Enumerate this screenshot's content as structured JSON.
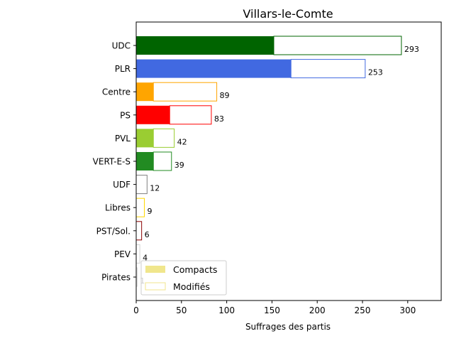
{
  "chart_data": {
    "type": "bar",
    "orientation": "horizontal",
    "title": "Villars-le-Comte",
    "xlabel": "Suffrages des partis",
    "ylabel": "",
    "xlim": [
      0,
      337
    ],
    "xticks": [
      0,
      50,
      100,
      150,
      200,
      250,
      300
    ],
    "grid": false,
    "legend_position": "lower-left",
    "categories": [
      "UDC",
      "PLR",
      "Centre",
      "PS",
      "PVL",
      "VERT-E-S",
      "UDF",
      "Libres",
      "PST/Sol.",
      "PEV",
      "Pirates"
    ],
    "series": [
      {
        "name": "Compacts",
        "values": [
          152,
          171,
          19,
          37,
          19,
          19,
          0,
          0,
          0,
          0,
          0
        ]
      },
      {
        "name": "Modifiés",
        "values": [
          141,
          82,
          70,
          46,
          23,
          20,
          12,
          9,
          6,
          4,
          1
        ]
      }
    ],
    "totals": [
      293,
      253,
      89,
      83,
      42,
      39,
      12,
      9,
      6,
      4,
      1
    ],
    "colors": [
      "#006400",
      "#4169e1",
      "#ffa500",
      "#ff0000",
      "#9acd32",
      "#228b22",
      "#808080",
      "#ffd700",
      "#8b0000",
      "#d3d3d3",
      "#d3d3d3"
    ],
    "legend_color": "#f0e68c"
  }
}
